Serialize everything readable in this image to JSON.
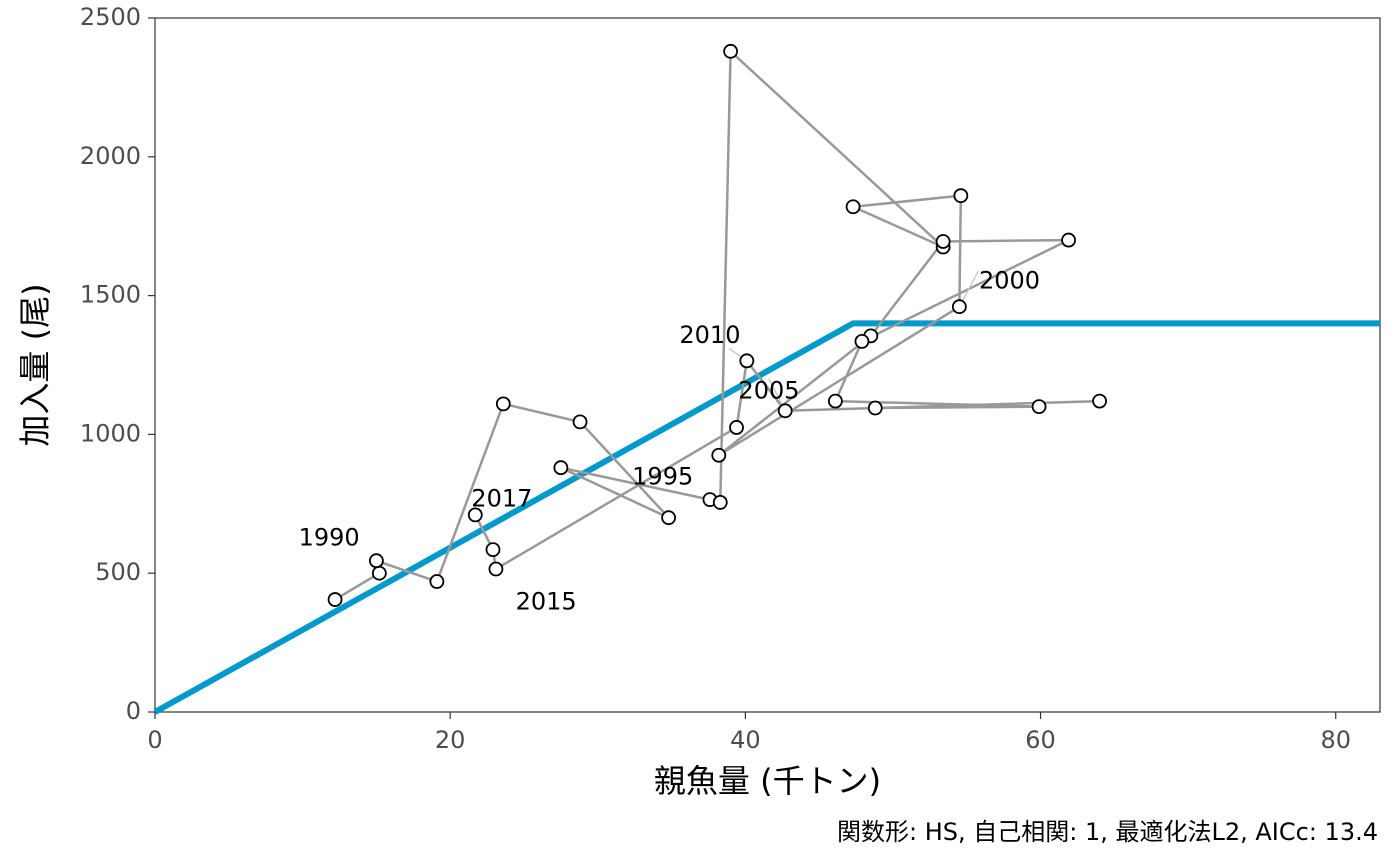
{
  "chart_data": {
    "type": "scatter",
    "xlabel": "親魚量 (千トン)",
    "ylabel": "加入量 (尾)",
    "caption": "関数形: HS, 自己相関: 1, 最適化法L2, AICc: 13.4",
    "xlim": [
      0,
      83
    ],
    "ylim": [
      0,
      2500
    ],
    "xticks": [
      0,
      20,
      40,
      60,
      80
    ],
    "yticks": [
      0,
      500,
      1000,
      1500,
      2000,
      2500
    ],
    "grid": false,
    "colors": {
      "fit_line": "#0099cc",
      "path": "#999999",
      "point_stroke": "#000000",
      "point_fill": "#ffffff"
    },
    "hockey_stick": {
      "breakpoint_x": 47.3,
      "plateau_y": 1400
    },
    "observations": [
      {
        "x": 12.2,
        "y": 405
      },
      {
        "x": 15.2,
        "y": 500
      },
      {
        "x": 15.0,
        "y": 545
      },
      {
        "x": 19.1,
        "y": 470
      },
      {
        "x": 23.6,
        "y": 1110
      },
      {
        "x": 28.8,
        "y": 1045
      },
      {
        "x": 34.8,
        "y": 700
      },
      {
        "x": 27.5,
        "y": 880
      },
      {
        "x": 37.6,
        "y": 765
      },
      {
        "x": 38.3,
        "y": 755
      },
      {
        "x": 39.0,
        "y": 2380
      },
      {
        "x": 53.4,
        "y": 1675
      },
      {
        "x": 47.3,
        "y": 1820
      },
      {
        "x": 54.6,
        "y": 1860
      },
      {
        "x": 54.5,
        "y": 1460
      },
      {
        "x": 38.2,
        "y": 925
      },
      {
        "x": 48.5,
        "y": 1355
      },
      {
        "x": 53.4,
        "y": 1695
      },
      {
        "x": 61.9,
        "y": 1700
      },
      {
        "x": 47.9,
        "y": 1335
      },
      {
        "x": 46.1,
        "y": 1120
      },
      {
        "x": 59.9,
        "y": 1100
      },
      {
        "x": 48.8,
        "y": 1095
      },
      {
        "x": 64.0,
        "y": 1120
      },
      {
        "x": 42.7,
        "y": 1085
      },
      {
        "x": 40.1,
        "y": 1265
      },
      {
        "x": 39.4,
        "y": 1025
      },
      {
        "x": 23.1,
        "y": 515
      },
      {
        "x": 22.9,
        "y": 585
      },
      {
        "x": 21.7,
        "y": 710
      }
    ],
    "year_labels": [
      {
        "text": "1990",
        "x": 11.8,
        "y": 625
      },
      {
        "text": "1995",
        "x": 34.4,
        "y": 845
      },
      {
        "text": "2000",
        "x": 57.9,
        "y": 1550
      },
      {
        "text": "2005",
        "x": 41.6,
        "y": 1155
      },
      {
        "text": "2010",
        "x": 37.6,
        "y": 1355
      },
      {
        "text": "2015",
        "x": 26.5,
        "y": 395
      },
      {
        "text": "2017",
        "x": 23.5,
        "y": 765
      }
    ],
    "label_leaders": [
      {
        "from": [
          38.9,
          1310
        ],
        "to": [
          40.1,
          1265
        ]
      },
      {
        "from": [
          41.6,
          1200
        ],
        "to": [
          42.7,
          1085
        ]
      },
      {
        "from": [
          55.8,
          1590
        ],
        "to": [
          54.5,
          1460
        ]
      }
    ]
  }
}
